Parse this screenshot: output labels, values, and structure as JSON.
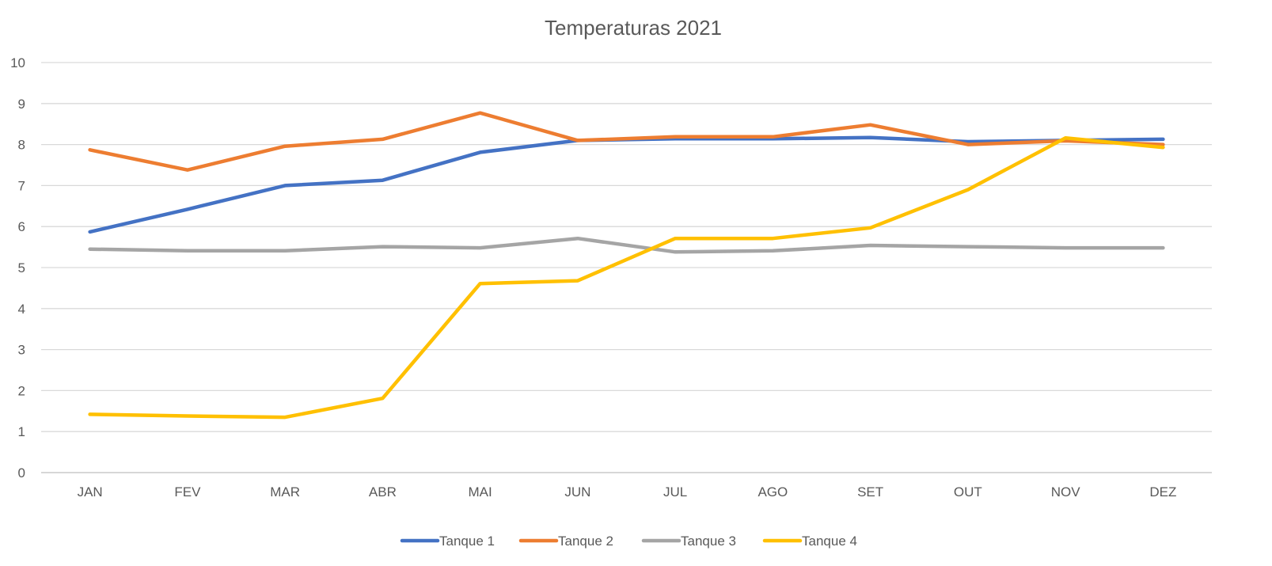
{
  "chart_data": {
    "type": "line",
    "title": "Temperaturas 2021",
    "xlabel": "",
    "ylabel": "",
    "categories": [
      "JAN",
      "FEV",
      "MAR",
      "ABR",
      "MAI",
      "JUN",
      "JUL",
      "AGO",
      "SET",
      "OUT",
      "NOV",
      "DEZ"
    ],
    "ylim": [
      0,
      10
    ],
    "yticks": [
      "0",
      "1",
      "2",
      "3",
      "4",
      "5",
      "6",
      "7",
      "8",
      "9",
      "10"
    ],
    "grid": true,
    "legend_position": "bottom",
    "series": [
      {
        "name": "Tanque 1",
        "color": "#4472C4",
        "values": [
          5.87,
          6.42,
          7.0,
          7.13,
          7.81,
          8.1,
          8.14,
          8.14,
          8.17,
          8.07,
          8.1,
          8.13
        ]
      },
      {
        "name": "Tanque 2",
        "color": "#ED7D31",
        "values": [
          7.87,
          7.38,
          7.96,
          8.13,
          8.77,
          8.1,
          8.19,
          8.19,
          8.48,
          8.0,
          8.09,
          8.0
        ]
      },
      {
        "name": "Tanque 3",
        "color": "#A5A5A5",
        "values": [
          5.45,
          5.41,
          5.41,
          5.51,
          5.48,
          5.71,
          5.38,
          5.41,
          5.54,
          5.51,
          5.48,
          5.48
        ]
      },
      {
        "name": "Tanque 4",
        "color": "#FFC000",
        "values": [
          1.42,
          1.38,
          1.35,
          1.81,
          4.61,
          4.68,
          5.71,
          5.71,
          5.97,
          6.9,
          8.16,
          7.93
        ]
      }
    ]
  }
}
